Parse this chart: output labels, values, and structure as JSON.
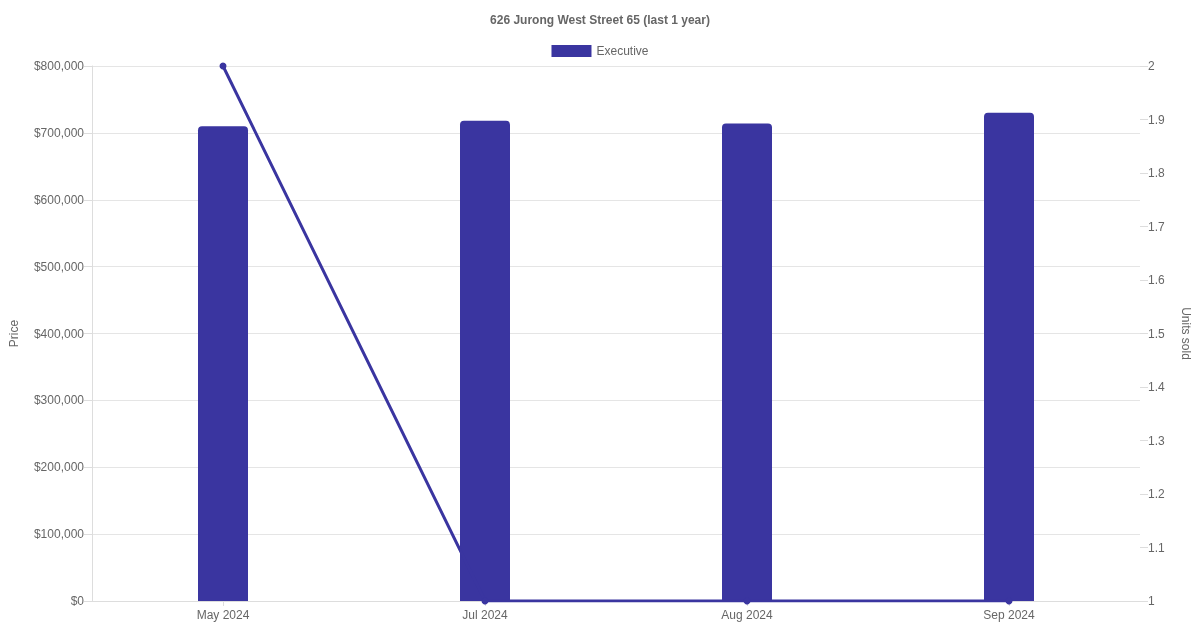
{
  "chart_data": {
    "type": "bar",
    "title": "626 Jurong West Street 65 (last 1 year)",
    "categories": [
      "May 2024",
      "Jul 2024",
      "Aug 2024",
      "Sep 2024"
    ],
    "series": [
      {
        "name": "Executive",
        "color": "#3a35a0",
        "values": [
          710000,
          718000,
          714000,
          730000
        ]
      },
      {
        "type": "line",
        "axis": "y2",
        "color": "#3a35a0",
        "values": [
          2,
          1,
          1,
          1
        ]
      }
    ],
    "ylabel": "Price",
    "y2label": "Units sold",
    "ylim": [
      0,
      800000
    ],
    "yticks": [
      {
        "value": 0,
        "label": "$0"
      },
      {
        "value": 100000,
        "label": "$100,000"
      },
      {
        "value": 200000,
        "label": "$200,000"
      },
      {
        "value": 300000,
        "label": "$300,000"
      },
      {
        "value": 400000,
        "label": "$400,000"
      },
      {
        "value": 500000,
        "label": "$500,000"
      },
      {
        "value": 600000,
        "label": "$600,000"
      },
      {
        "value": 700000,
        "label": "$700,000"
      },
      {
        "value": 800000,
        "label": "$800,000"
      }
    ],
    "y2lim": [
      1,
      2
    ],
    "y2ticks": [
      1,
      1.1,
      1.2,
      1.3,
      1.4,
      1.5,
      1.6,
      1.7,
      1.8,
      1.9,
      2
    ],
    "grid": "y",
    "legend": "top",
    "marker": "circle"
  }
}
